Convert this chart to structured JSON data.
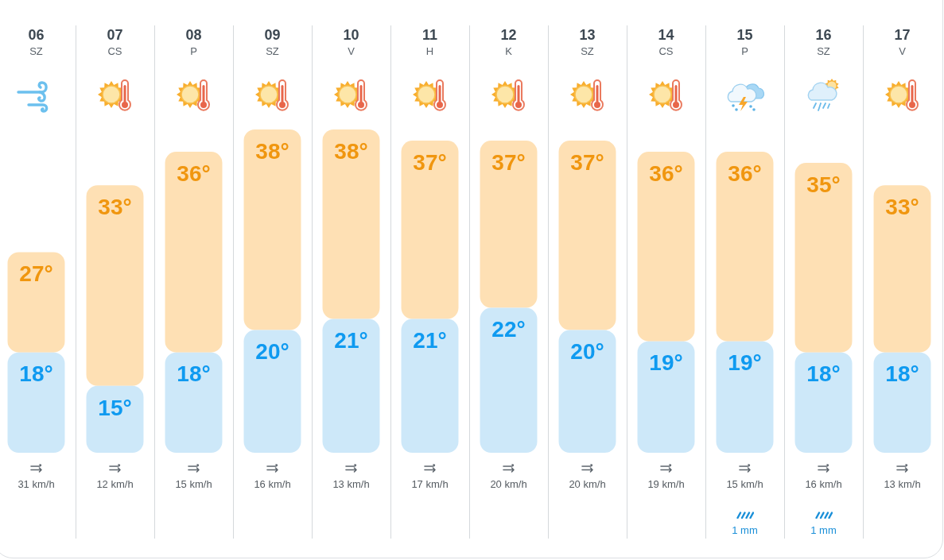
{
  "chart_data": {
    "type": "bar",
    "categories": [
      "06\nSZ",
      "07\nCS",
      "08\nP",
      "09\nSZ",
      "10\nV",
      "11\nH",
      "12\nK",
      "13\nSZ",
      "14\nCS",
      "15\nP",
      "16\nSZ",
      "17\nV"
    ],
    "series": [
      {
        "color": "#cde8f9",
        "values": [
          18,
          15,
          18,
          20,
          21,
          21,
          22,
          20,
          19,
          19,
          18,
          18
        ],
        "value_labels": [
          "18°",
          "15°",
          "18°",
          "20°",
          "21°",
          "21°",
          "22°",
          "20°",
          "19°",
          "19°",
          "18°",
          "18°"
        ]
      },
      {
        "color": "#fee0b4",
        "values": [
          9,
          18,
          18,
          18,
          17,
          16,
          15,
          17,
          17,
          17,
          17,
          15
        ]
      }
    ],
    "stacked": true,
    "totals": [
      "27°",
      "33°",
      "36°",
      "38°",
      "38°",
      "37°",
      "37°",
      "37°",
      "36°",
      "36°",
      "35°",
      "33°"
    ],
    "ylim": [
      9,
      38
    ],
    "tick_labels": "x",
    "grid": "x",
    "annotations": [
      "31 km/h",
      "12 km/h",
      "15 km/h",
      "16 km/h",
      "13 km/h",
      "17 km/h",
      "20 km/h",
      "20 km/h",
      "19 km/h",
      "15 km/h",
      "16 km/h",
      "13 km/h",
      "1 mm",
      "1 mm"
    ]
  }
}
